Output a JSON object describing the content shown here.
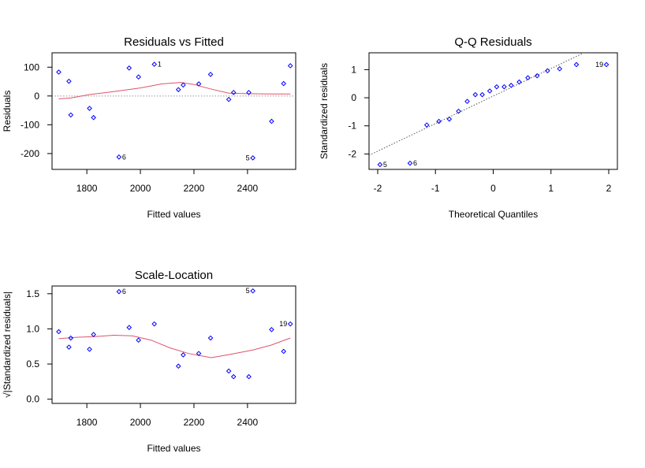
{
  "chart_data": [
    {
      "type": "scatter",
      "title": "Residuals vs Fitted",
      "xlabel": "Fitted values",
      "ylabel": "Residuals",
      "xlim": [
        1670,
        2580
      ],
      "ylim": [
        -255,
        150
      ],
      "xticks": [
        1800,
        2000,
        2200,
        2400
      ],
      "yticks": [
        -200,
        -100,
        0,
        100
      ],
      "reference_line": {
        "type": "horizontal",
        "y": 0,
        "style": "dotted",
        "color": "#999999"
      },
      "point_color": "#0000ff",
      "line_color": "#df536b",
      "points": [
        {
          "x": 1695,
          "y": 83
        },
        {
          "x": 1733,
          "y": 51
        },
        {
          "x": 1740,
          "y": -66
        },
        {
          "x": 1810,
          "y": -43
        },
        {
          "x": 1825,
          "y": -75
        },
        {
          "x": 1920,
          "y": -212
        },
        {
          "x": 1958,
          "y": 97
        },
        {
          "x": 1993,
          "y": 66
        },
        {
          "x": 2052,
          "y": 110
        },
        {
          "x": 2142,
          "y": 22
        },
        {
          "x": 2160,
          "y": 38
        },
        {
          "x": 2218,
          "y": 42
        },
        {
          "x": 2262,
          "y": 75
        },
        {
          "x": 2330,
          "y": -12
        },
        {
          "x": 2348,
          "y": 12
        },
        {
          "x": 2405,
          "y": 12
        },
        {
          "x": 2420,
          "y": -215
        },
        {
          "x": 2490,
          "y": -88
        },
        {
          "x": 2535,
          "y": 43
        },
        {
          "x": 2560,
          "y": 105
        }
      ],
      "smooth": [
        {
          "x": 1695,
          "y": -10
        },
        {
          "x": 1740,
          "y": -7
        },
        {
          "x": 1810,
          "y": 5
        },
        {
          "x": 1900,
          "y": 15
        },
        {
          "x": 2000,
          "y": 28
        },
        {
          "x": 2080,
          "y": 42
        },
        {
          "x": 2150,
          "y": 47
        },
        {
          "x": 2200,
          "y": 40
        },
        {
          "x": 2260,
          "y": 25
        },
        {
          "x": 2330,
          "y": 10
        },
        {
          "x": 2400,
          "y": 8
        },
        {
          "x": 2480,
          "y": 7
        },
        {
          "x": 2560,
          "y": 7
        }
      ],
      "annotations": [
        {
          "text": "1",
          "x": 2052,
          "y": 110,
          "side": "right"
        },
        {
          "text": "6",
          "x": 1920,
          "y": -212,
          "side": "right"
        },
        {
          "text": "5",
          "x": 2420,
          "y": -215,
          "side": "left"
        }
      ]
    },
    {
      "type": "scatter",
      "title": "Q-Q Residuals",
      "xlabel": "Theoretical Quantiles",
      "ylabel": "Standardized residuals",
      "xlim": [
        -2.15,
        2.15
      ],
      "ylim": [
        -2.55,
        1.6
      ],
      "xticks": [
        -2,
        -1,
        0,
        1,
        2
      ],
      "yticks": [
        -2,
        -1,
        0,
        1
      ],
      "reference_line": {
        "type": "qq",
        "slope": 0.98,
        "intercept": 0.06,
        "style": "dotted",
        "color": "#555555"
      },
      "point_color": "#0000ff",
      "points": [
        {
          "x": -1.96,
          "y": -2.38
        },
        {
          "x": -1.44,
          "y": -2.33
        },
        {
          "x": -1.15,
          "y": -0.97
        },
        {
          "x": -0.94,
          "y": -0.84
        },
        {
          "x": -0.76,
          "y": -0.76
        },
        {
          "x": -0.6,
          "y": -0.48
        },
        {
          "x": -0.45,
          "y": -0.13
        },
        {
          "x": -0.31,
          "y": 0.11
        },
        {
          "x": -0.19,
          "y": 0.11
        },
        {
          "x": -0.06,
          "y": 0.24
        },
        {
          "x": 0.06,
          "y": 0.39
        },
        {
          "x": 0.19,
          "y": 0.39
        },
        {
          "x": 0.31,
          "y": 0.44
        },
        {
          "x": 0.45,
          "y": 0.56
        },
        {
          "x": 0.6,
          "y": 0.71
        },
        {
          "x": 0.76,
          "y": 0.78
        },
        {
          "x": 0.94,
          "y": 0.96
        },
        {
          "x": 1.15,
          "y": 1.03
        },
        {
          "x": 1.44,
          "y": 1.18
        },
        {
          "x": 1.96,
          "y": 1.18
        }
      ],
      "annotations": [
        {
          "text": "5",
          "x": -1.96,
          "y": -2.38,
          "side": "right"
        },
        {
          "text": "6",
          "x": -1.44,
          "y": -2.33,
          "side": "right"
        },
        {
          "text": "19",
          "x": 1.96,
          "y": 1.18,
          "side": "left"
        }
      ]
    },
    {
      "type": "scatter",
      "title": "Scale-Location",
      "xlabel": "Fitted values",
      "ylabel": "√|Standardized residuals|",
      "xlim": [
        1670,
        2580
      ],
      "ylim": [
        -0.06,
        1.61
      ],
      "xticks": [
        1800,
        2000,
        2200,
        2400
      ],
      "yticks": [
        0.0,
        0.5,
        1.0,
        1.5
      ],
      "ytick_labels": [
        "0.0",
        "0.5",
        "1.0",
        "1.5"
      ],
      "point_color": "#0000ff",
      "line_color": "#df536b",
      "points": [
        {
          "x": 1695,
          "y": 0.96
        },
        {
          "x": 1733,
          "y": 0.74
        },
        {
          "x": 1740,
          "y": 0.87
        },
        {
          "x": 1810,
          "y": 0.71
        },
        {
          "x": 1825,
          "y": 0.92
        },
        {
          "x": 1920,
          "y": 1.53
        },
        {
          "x": 1958,
          "y": 1.02
        },
        {
          "x": 1993,
          "y": 0.84
        },
        {
          "x": 2052,
          "y": 1.07
        },
        {
          "x": 2142,
          "y": 0.47
        },
        {
          "x": 2160,
          "y": 0.63
        },
        {
          "x": 2218,
          "y": 0.65
        },
        {
          "x": 2262,
          "y": 0.87
        },
        {
          "x": 2330,
          "y": 0.4
        },
        {
          "x": 2348,
          "y": 0.32
        },
        {
          "x": 2405,
          "y": 0.32
        },
        {
          "x": 2420,
          "y": 1.54
        },
        {
          "x": 2490,
          "y": 0.99
        },
        {
          "x": 2535,
          "y": 0.68
        },
        {
          "x": 2560,
          "y": 1.07
        }
      ],
      "smooth": [
        {
          "x": 1695,
          "y": 0.86
        },
        {
          "x": 1760,
          "y": 0.88
        },
        {
          "x": 1830,
          "y": 0.89
        },
        {
          "x": 1900,
          "y": 0.91
        },
        {
          "x": 1970,
          "y": 0.9
        },
        {
          "x": 2040,
          "y": 0.84
        },
        {
          "x": 2110,
          "y": 0.73
        },
        {
          "x": 2180,
          "y": 0.65
        },
        {
          "x": 2265,
          "y": 0.59
        },
        {
          "x": 2340,
          "y": 0.64
        },
        {
          "x": 2420,
          "y": 0.7
        },
        {
          "x": 2490,
          "y": 0.77
        },
        {
          "x": 2560,
          "y": 0.87
        }
      ],
      "annotations": [
        {
          "text": "6",
          "x": 1920,
          "y": 1.53,
          "side": "right"
        },
        {
          "text": "5",
          "x": 2420,
          "y": 1.54,
          "side": "left"
        },
        {
          "text": "19",
          "x": 2560,
          "y": 1.07,
          "side": "left"
        }
      ]
    }
  ]
}
